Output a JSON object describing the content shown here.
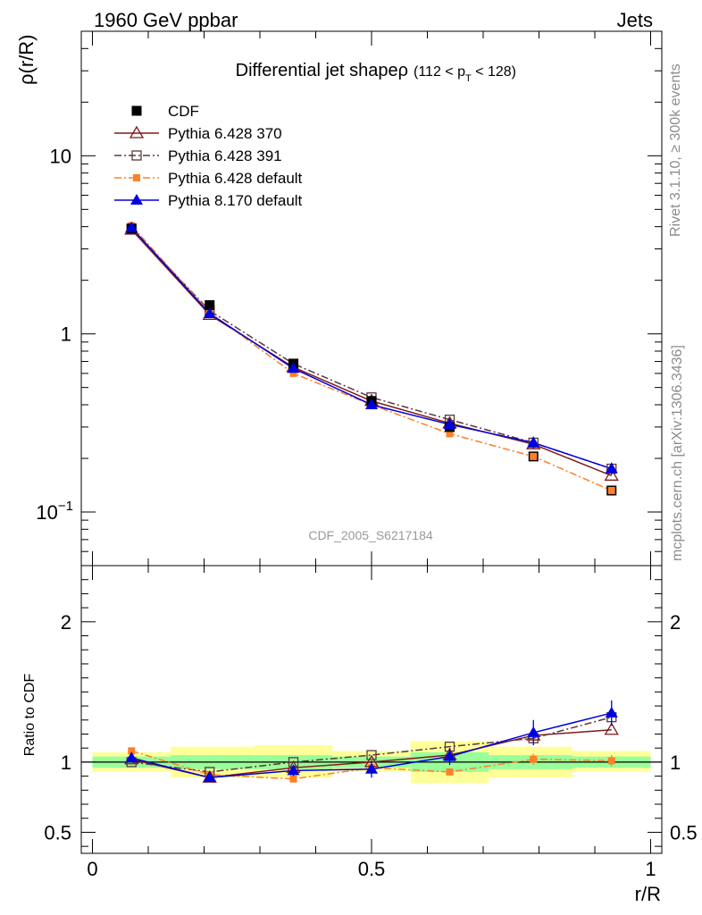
{
  "header": {
    "left": "1960 GeV ppbar",
    "right": "Jets"
  },
  "side_text": {
    "rivet": "Rivet 3.1.10, ≥ 300k events",
    "mcplots": "mcplots.cern.ch [arXiv:1306.3436]"
  },
  "chart_data": [
    {
      "type": "line",
      "title": "Differential jet shapeρ",
      "title_cut": "(112 < p",
      "title_cut_sub": "T",
      "title_cut_end": " < 128)",
      "ylabel": "ρ(r/R)",
      "xlabel": "r/R",
      "yscale": "log",
      "ylim": [
        0.05,
        50
      ],
      "xlim": [
        -0.02,
        1.02
      ],
      "yticks": [
        {
          "v": 0.1,
          "base": "10",
          "exp": "−1"
        },
        {
          "v": 1,
          "base": "1",
          "exp": ""
        },
        {
          "v": 10,
          "base": "10",
          "exp": ""
        }
      ],
      "analysis_label": "CDF_2005_S6217184",
      "x": [
        0.07,
        0.21,
        0.36,
        0.5,
        0.64,
        0.79,
        0.93
      ],
      "series": [
        {
          "name": "CDF",
          "color": "#000000",
          "marker": "filled-square",
          "line": "none",
          "values": [
            3.9,
            1.45,
            0.68,
            0.42,
            0.3,
            0.205,
            0.132
          ]
        },
        {
          "name": "Pythia 6.428 370",
          "color": "#7f1a1a",
          "marker": "open-triangle",
          "line": "solid",
          "values": [
            3.85,
            1.28,
            0.65,
            0.42,
            0.315,
            0.24,
            0.16
          ]
        },
        {
          "name": "Pythia 6.428 391",
          "color": "#5a3a3a",
          "marker": "open-square",
          "line": "dashdot",
          "values": [
            3.9,
            1.35,
            0.68,
            0.44,
            0.33,
            0.245,
            0.175
          ]
        },
        {
          "name": "Pythia 6.428 default",
          "color": "#ff7f27",
          "marker": "filled-square-small",
          "line": "dashdot",
          "values": [
            4.05,
            1.32,
            0.6,
            0.4,
            0.275,
            0.205,
            0.132
          ]
        },
        {
          "name": "Pythia 8.170 default",
          "color": "#0000e0",
          "marker": "filled-triangle",
          "line": "solid",
          "values": [
            3.95,
            1.3,
            0.64,
            0.4,
            0.31,
            0.245,
            0.175
          ]
        }
      ]
    },
    {
      "type": "line",
      "ylabel": "Ratio to CDF",
      "xlabel": "r/R",
      "ylim": [
        0.35,
        2.4
      ],
      "yticks": [
        0.5,
        1,
        2
      ],
      "ytick_labels": [
        "0.5",
        "1",
        "2"
      ],
      "xticks": [
        0,
        0.5,
        1
      ],
      "xtick_labels": [
        "0",
        "0.5",
        "1"
      ],
      "band_bins": [
        [
          -0.02,
          0.14
        ],
        [
          0.14,
          0.29
        ],
        [
          0.29,
          0.43
        ],
        [
          0.43,
          0.57
        ],
        [
          0.57,
          0.71
        ],
        [
          0.71,
          0.86
        ],
        [
          0.86,
          1.0
        ]
      ],
      "band_inner": [
        [
          0.96,
          1.04
        ],
        [
          0.95,
          1.05
        ],
        [
          0.95,
          1.05
        ],
        [
          0.96,
          1.04
        ],
        [
          0.93,
          1.07
        ],
        [
          0.95,
          1.05
        ],
        [
          0.96,
          1.04
        ]
      ],
      "band_outer": [
        [
          0.93,
          1.07
        ],
        [
          0.89,
          1.11
        ],
        [
          0.89,
          1.12
        ],
        [
          0.93,
          1.08
        ],
        [
          0.85,
          1.15
        ],
        [
          0.89,
          1.11
        ],
        [
          0.93,
          1.08
        ]
      ],
      "band_colors": {
        "outer": "#ffff99",
        "inner": "#99ff99"
      },
      "x": [
        0.07,
        0.21,
        0.36,
        0.5,
        0.64,
        0.79,
        0.93
      ],
      "series": [
        {
          "name": "Pythia 6.428 370",
          "color": "#7f1a1a",
          "line": "solid",
          "marker": "open-triangle",
          "values": [
            1.02,
            0.89,
            0.96,
            1.0,
            1.05,
            1.19,
            1.23
          ]
        },
        {
          "name": "Pythia 6.428 391",
          "color": "#5a3a3a",
          "line": "dashdot",
          "marker": "open-square",
          "values": [
            1.0,
            0.93,
            1.0,
            1.05,
            1.11,
            1.17,
            1.32
          ]
        },
        {
          "name": "Pythia 6.428 default",
          "color": "#ff7f27",
          "line": "dashdot",
          "marker": "filled-square-small",
          "values": [
            1.08,
            0.91,
            0.88,
            0.96,
            0.93,
            1.02,
            1.01
          ]
        },
        {
          "name": "Pythia 8.170 default",
          "color": "#0000e0",
          "line": "solid",
          "marker": "filled-triangle",
          "values": [
            1.03,
            0.89,
            0.94,
            0.95,
            1.04,
            1.21,
            1.35
          ]
        }
      ]
    }
  ]
}
